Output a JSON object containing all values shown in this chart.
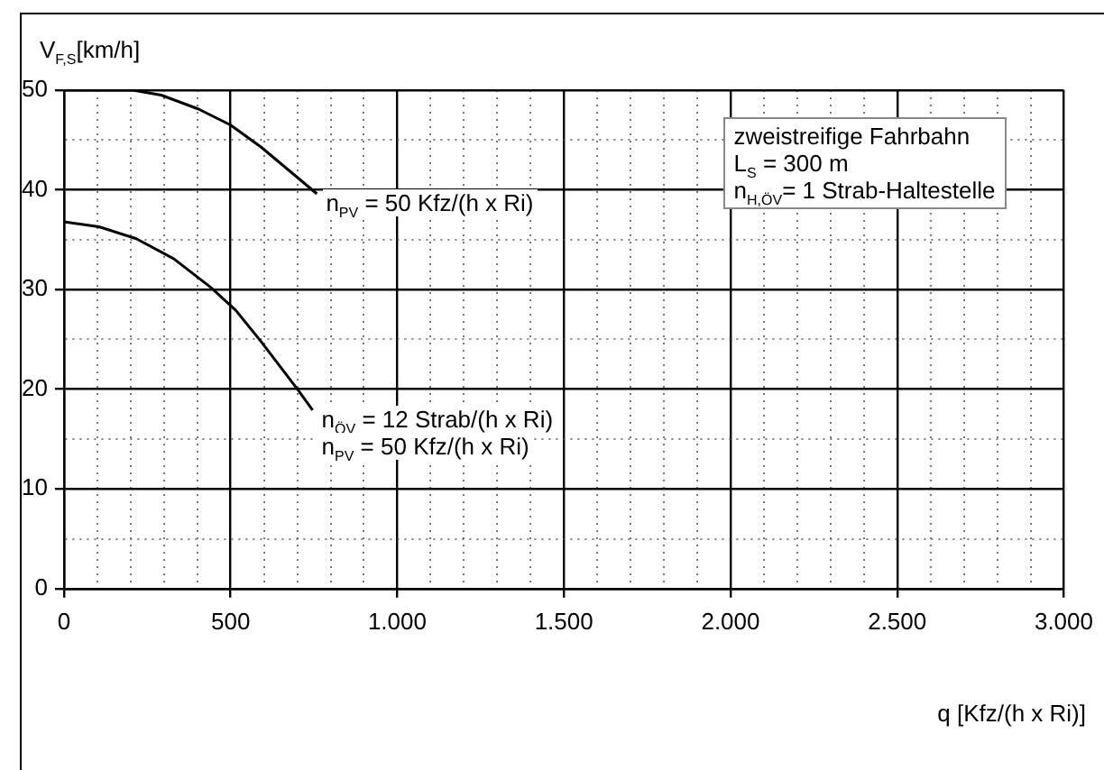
{
  "chart_data": {
    "type": "line",
    "ylabel": "V$_{F,S}$[km/h]",
    "xlabel": "q [Kfz/(h x Ri)]",
    "series": [
      {
        "color": "#000000",
        "x": [
          0,
          150,
          207,
          292,
          404,
          500,
          591,
          684,
          759
        ],
        "values": [
          50,
          50,
          50,
          49.5,
          48.1,
          46.5,
          44.3,
          41.7,
          39.6
        ]
      },
      {
        "color": "#000000",
        "x": [
          0,
          105,
          217,
          329,
          441,
          516,
          591,
          703,
          746
        ],
        "values": [
          36.8,
          36.3,
          35.1,
          33.1,
          30.2,
          27.9,
          24.8,
          19.9,
          17.9
        ]
      }
    ],
    "annotations": [
      {
        "text": "n$_{PV}$ = 50 Kfz/(h x Ri)",
        "x": 759,
        "y": 39.6
      },
      {
        "text": "n$_{ÖV}$ = 12 Strab/(h x Ri)",
        "x": 746,
        "y": 17.9
      },
      "n$_{PV}$ = 50 Kfz/(h x Ri)",
      "zweistreifige Fahrbahn\nL$_{S}$ = 300 m\nn$_{H,ÖV}$= 1 Strab-Haltestelle"
    ],
    "xlim": [
      0,
      3000
    ],
    "ylim": [
      0,
      50
    ],
    "xticks": [
      0,
      {
        "value": 100,
        "label": null
      },
      {
        "value": 200,
        "label": null
      },
      {
        "value": 300,
        "label": null
      },
      {
        "value": 400,
        "label": null
      },
      500,
      {
        "value": 600,
        "label": null
      },
      {
        "value": 700,
        "label": null
      },
      {
        "value": 800,
        "label": null
      },
      {
        "value": 900,
        "label": null
      },
      {
        "value": 1000,
        "label": "1.000"
      },
      {
        "value": 1100,
        "label": null
      },
      {
        "value": 1200,
        "label": null
      },
      {
        "value": 1300,
        "label": null
      },
      {
        "value": 1400,
        "label": null
      },
      {
        "value": 1500,
        "label": "1.500"
      },
      {
        "value": 1600,
        "label": null
      },
      {
        "value": 1700,
        "label": null
      },
      {
        "value": 1800,
        "label": null
      },
      {
        "value": 1900,
        "label": null
      },
      {
        "value": 2000,
        "label": "2.000"
      },
      {
        "value": 2100,
        "label": null
      },
      {
        "value": 2200,
        "label": null
      },
      {
        "value": 2300,
        "label": null
      },
      {
        "value": 2400,
        "label": null
      },
      {
        "value": 2500,
        "label": "2.500"
      },
      {
        "value": 2600,
        "label": null
      },
      {
        "value": 2700,
        "label": null
      },
      {
        "value": 2800,
        "label": null
      },
      {
        "value": 2900,
        "label": null
      },
      {
        "value": 3000,
        "label": "3.000"
      }
    ],
    "yticks": [
      0,
      {
        "value": 5,
        "label": null
      },
      10,
      {
        "value": 15,
        "label": null
      },
      20,
      {
        "value": 25,
        "label": null
      },
      30,
      {
        "value": 35,
        "label": null
      },
      40,
      {
        "value": 45,
        "label": null
      },
      50
    ],
    "grid": true,
    "legend": false,
    "marker": "none",
    "line_style": "solid"
  }
}
